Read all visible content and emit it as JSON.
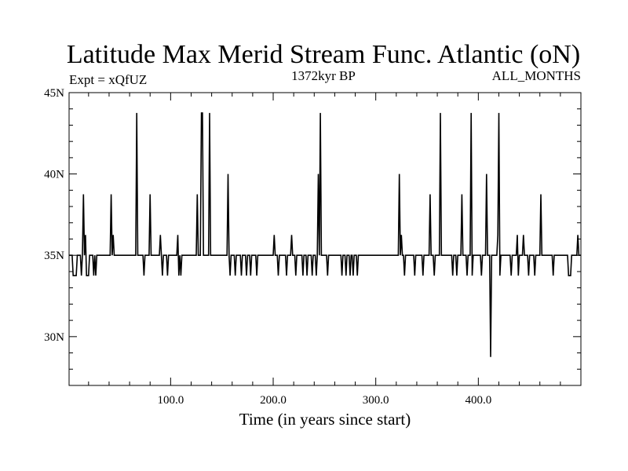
{
  "chart_data": {
    "type": "line",
    "title": "Latitude Max Merid Stream Func. Atlantic (oN)",
    "subtitle_left": "Expt = xQfUZ",
    "subtitle_center": "1372kyr BP",
    "subtitle_right": "ALL_MONTHS",
    "xlabel": "Time (in years since start)",
    "ylabel": "",
    "xlim": [
      1,
      500
    ],
    "ylim": [
      27,
      45
    ],
    "x_ticks": [
      {
        "value": 100,
        "label": "100.0"
      },
      {
        "value": 200,
        "label": "200.0"
      },
      {
        "value": 300,
        "label": "300.0"
      },
      {
        "value": 400,
        "label": "400.0"
      }
    ],
    "y_ticks": [
      {
        "value": 30,
        "label": "30N"
      },
      {
        "value": 35,
        "label": "35N"
      },
      {
        "value": 40,
        "label": "40N"
      },
      {
        "value": 45,
        "label": "45N"
      }
    ],
    "grid": false,
    "series": [
      {
        "points": [
          [
            1,
            35
          ],
          [
            4,
            35
          ],
          [
            5,
            33.75
          ],
          [
            8,
            33.75
          ],
          [
            9,
            35
          ],
          [
            12,
            35
          ],
          [
            13,
            33.75
          ],
          [
            14,
            35
          ],
          [
            15,
            38.75
          ],
          [
            16,
            35
          ],
          [
            17,
            36.25
          ],
          [
            18,
            33.75
          ],
          [
            20,
            33.75
          ],
          [
            21,
            35
          ],
          [
            24,
            35
          ],
          [
            25,
            33.75
          ],
          [
            26,
            35
          ],
          [
            27,
            33.75
          ],
          [
            28,
            35
          ],
          [
            41,
            35
          ],
          [
            42,
            38.75
          ],
          [
            43,
            35
          ],
          [
            44,
            36.25
          ],
          [
            45,
            35
          ],
          [
            66,
            35
          ],
          [
            67,
            43.75
          ],
          [
            68,
            35
          ],
          [
            73,
            35
          ],
          [
            74,
            33.75
          ],
          [
            75,
            35
          ],
          [
            79,
            35
          ],
          [
            80,
            38.75
          ],
          [
            81,
            35
          ],
          [
            89,
            35
          ],
          [
            90,
            36.25
          ],
          [
            91,
            35
          ],
          [
            92,
            33.75
          ],
          [
            93,
            35
          ],
          [
            96,
            35
          ],
          [
            97,
            33.75
          ],
          [
            98,
            35
          ],
          [
            106,
            35
          ],
          [
            107,
            36.25
          ],
          [
            108,
            33.75
          ],
          [
            109,
            35
          ],
          [
            110,
            33.75
          ],
          [
            111,
            35
          ],
          [
            125,
            35
          ],
          [
            126,
            38.75
          ],
          [
            127,
            35
          ],
          [
            129,
            35
          ],
          [
            130,
            43.75
          ],
          [
            131,
            43.75
          ],
          [
            132,
            35
          ],
          [
            137,
            35
          ],
          [
            138,
            43.75
          ],
          [
            139,
            35
          ],
          [
            155,
            35
          ],
          [
            156,
            40
          ],
          [
            157,
            35
          ],
          [
            158,
            33.75
          ],
          [
            159,
            35
          ],
          [
            162,
            35
          ],
          [
            163,
            33.75
          ],
          [
            164,
            35
          ],
          [
            168,
            35
          ],
          [
            169,
            33.75
          ],
          [
            170,
            35
          ],
          [
            173,
            35
          ],
          [
            174,
            33.75
          ],
          [
            175,
            35
          ],
          [
            177,
            35
          ],
          [
            178,
            33.75
          ],
          [
            179,
            35
          ],
          [
            183,
            35
          ],
          [
            184,
            33.75
          ],
          [
            185,
            35
          ],
          [
            200,
            35
          ],
          [
            201,
            36.25
          ],
          [
            202,
            35
          ],
          [
            204,
            35
          ],
          [
            205,
            33.75
          ],
          [
            206,
            35
          ],
          [
            212,
            35
          ],
          [
            213,
            33.75
          ],
          [
            214,
            35
          ],
          [
            217,
            35
          ],
          [
            218,
            36.25
          ],
          [
            219,
            35
          ],
          [
            221,
            35
          ],
          [
            222,
            33.75
          ],
          [
            223,
            35
          ],
          [
            228,
            35
          ],
          [
            229,
            33.75
          ],
          [
            230,
            35
          ],
          [
            232,
            35
          ],
          [
            233,
            33.75
          ],
          [
            234,
            35
          ],
          [
            237,
            35
          ],
          [
            238,
            33.75
          ],
          [
            239,
            35
          ],
          [
            241,
            35
          ],
          [
            242,
            33.75
          ],
          [
            243,
            35
          ],
          [
            244,
            40
          ],
          [
            245,
            35
          ],
          [
            246,
            43.75
          ],
          [
            247,
            35
          ],
          [
            252,
            35
          ],
          [
            253,
            33.75
          ],
          [
            254,
            35
          ],
          [
            266,
            35
          ],
          [
            267,
            33.75
          ],
          [
            268,
            35
          ],
          [
            270,
            35
          ],
          [
            271,
            33.75
          ],
          [
            272,
            35
          ],
          [
            274,
            35
          ],
          [
            275,
            33.75
          ],
          [
            276,
            35
          ],
          [
            277,
            35
          ],
          [
            278,
            33.75
          ],
          [
            279,
            35
          ],
          [
            281,
            35
          ],
          [
            282,
            33.75
          ],
          [
            283,
            35
          ],
          [
            322,
            35
          ],
          [
            323,
            40
          ],
          [
            324,
            35
          ],
          [
            325,
            36.25
          ],
          [
            326,
            35
          ],
          [
            327,
            35
          ],
          [
            328,
            33.75
          ],
          [
            329,
            35
          ],
          [
            337,
            35
          ],
          [
            338,
            33.75
          ],
          [
            339,
            35
          ],
          [
            345,
            35
          ],
          [
            346,
            33.75
          ],
          [
            347,
            35
          ],
          [
            352,
            35
          ],
          [
            353,
            38.75
          ],
          [
            354,
            35
          ],
          [
            356,
            35
          ],
          [
            357,
            33.75
          ],
          [
            358,
            35
          ],
          [
            362,
            35
          ],
          [
            363,
            43.75
          ],
          [
            364,
            35
          ],
          [
            374,
            35
          ],
          [
            375,
            33.75
          ],
          [
            376,
            35
          ],
          [
            378,
            35
          ],
          [
            379,
            33.75
          ],
          [
            380,
            35
          ],
          [
            383,
            35
          ],
          [
            384,
            38.75
          ],
          [
            385,
            35
          ],
          [
            388,
            35
          ],
          [
            389,
            33.75
          ],
          [
            390,
            35
          ],
          [
            392,
            35
          ],
          [
            393,
            43.75
          ],
          [
            394,
            33.75
          ],
          [
            395,
            35
          ],
          [
            402,
            35
          ],
          [
            403,
            33.75
          ],
          [
            404,
            35
          ],
          [
            407,
            35
          ],
          [
            408,
            40
          ],
          [
            409,
            35
          ],
          [
            411,
            35
          ],
          [
            412,
            28.75
          ],
          [
            413,
            35
          ],
          [
            418,
            35
          ],
          [
            419,
            36.25
          ],
          [
            420,
            43.75
          ],
          [
            421,
            33.75
          ],
          [
            422,
            35
          ],
          [
            431,
            35
          ],
          [
            432,
            33.75
          ],
          [
            433,
            35
          ],
          [
            437,
            35
          ],
          [
            438,
            36.25
          ],
          [
            439,
            33.75
          ],
          [
            440,
            35
          ],
          [
            443,
            35
          ],
          [
            444,
            36.25
          ],
          [
            445,
            35
          ],
          [
            448,
            35
          ],
          [
            449,
            33.75
          ],
          [
            450,
            35
          ],
          [
            454,
            35
          ],
          [
            455,
            33.75
          ],
          [
            456,
            35
          ],
          [
            460,
            35
          ],
          [
            461,
            38.75
          ],
          [
            462,
            35
          ],
          [
            472,
            35
          ],
          [
            473,
            33.75
          ],
          [
            474,
            35
          ],
          [
            487,
            35
          ],
          [
            488,
            33.75
          ],
          [
            490,
            33.75
          ],
          [
            491,
            35
          ],
          [
            496,
            35
          ],
          [
            497,
            36.25
          ],
          [
            498,
            35
          ],
          [
            500,
            35
          ]
        ]
      }
    ]
  }
}
